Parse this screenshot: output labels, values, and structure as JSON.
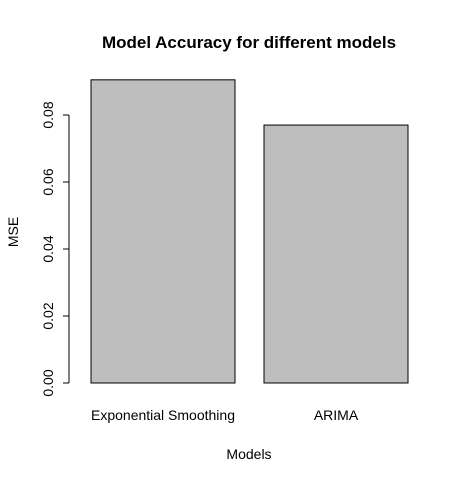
{
  "colors": {
    "background": "#ffffff",
    "bar_fill": "#bebebe",
    "bar_stroke": "#000000",
    "axis": "#000000",
    "text": "#000000"
  },
  "chart_data": {
    "type": "bar",
    "title": "Model Accuracy for different models",
    "xlabel": "Models",
    "ylabel": "MSE",
    "categories": [
      "Exponential Smoothing",
      "ARIMA"
    ],
    "values": [
      0.0905,
      0.077
    ],
    "ylim": [
      0,
      0.09
    ],
    "yticks": [
      "0.00",
      "0.02",
      "0.04",
      "0.06",
      "0.08"
    ],
    "grid": false,
    "legend": "none"
  }
}
